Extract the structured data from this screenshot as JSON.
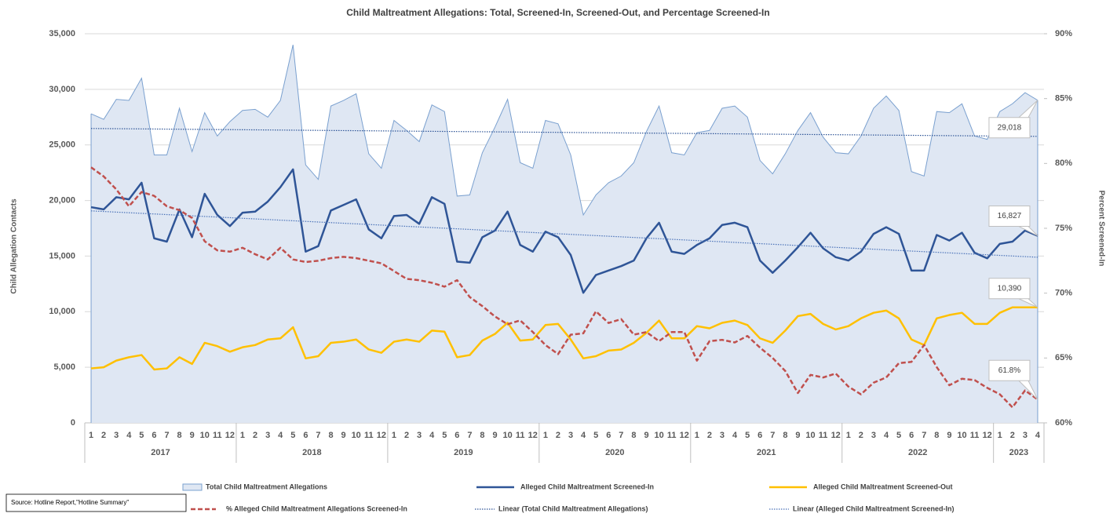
{
  "chart_data": {
    "type": "line",
    "title": "Child Maltreatment Allegations: Total, Screened-In, Screened-Out, and Percentage Screened-In",
    "y_label": "Child Allegation Contacts",
    "y2_label": "Percent Screened-In",
    "source": "Source: Hotline Report,\"Hotline Summary\"",
    "categories": [
      "1",
      "2",
      "3",
      "4",
      "5",
      "6",
      "7",
      "8",
      "9",
      "10",
      "11",
      "12",
      "1",
      "2",
      "3",
      "4",
      "5",
      "6",
      "7",
      "8",
      "9",
      "10",
      "11",
      "12",
      "1",
      "2",
      "3",
      "4",
      "5",
      "6",
      "7",
      "8",
      "9",
      "10",
      "11",
      "12",
      "1",
      "2",
      "3",
      "4",
      "5",
      "6",
      "7",
      "8",
      "9",
      "10",
      "11",
      "12",
      "1",
      "2",
      "3",
      "4",
      "5",
      "6",
      "7",
      "8",
      "9",
      "10",
      "11",
      "12",
      "1",
      "2",
      "3",
      "4",
      "5",
      "6",
      "7",
      "8",
      "9",
      "10",
      "11",
      "12",
      "1",
      "2",
      "3",
      "4"
    ],
    "years": [
      "2017",
      "2018",
      "2019",
      "2020",
      "2021",
      "2022",
      "2023"
    ],
    "ylim": [
      0,
      35000
    ],
    "yticks": [
      0,
      {
        "value": 5000,
        "label": "5,000"
      },
      {
        "value": 10000,
        "label": "10,000"
      },
      {
        "value": 15000,
        "label": "15,000"
      },
      {
        "value": 20000,
        "label": "20,000"
      },
      {
        "value": 25000,
        "label": "25,000"
      },
      {
        "value": 30000,
        "label": "30,000"
      },
      {
        "value": 35000,
        "label": "35,000"
      }
    ],
    "y2lim": [
      60,
      90
    ],
    "y2ticks": [
      {
        "value": 60,
        "label": "60%"
      },
      {
        "value": 65,
        "label": "65%"
      },
      {
        "value": 70,
        "label": "70%"
      },
      {
        "value": 75,
        "label": "75%"
      },
      {
        "value": 80,
        "label": "80%"
      },
      {
        "value": 85,
        "label": "85%"
      },
      {
        "value": 90,
        "label": "90%"
      }
    ],
    "grid": true,
    "series": [
      {
        "name": "Total Child Maltreatment Allegations",
        "type": "area",
        "color": "#7aa0cf",
        "fill": "#dfe7f3",
        "trendline": "Linear (Total Child Maltreatment Allegations)",
        "values": [
          27800,
          27300,
          29100,
          29000,
          31000,
          24100,
          24100,
          28300,
          24400,
          27900,
          25800,
          27100,
          28100,
          28200,
          27500,
          29000,
          34000,
          23200,
          21900,
          28500,
          29000,
          29600,
          24200,
          22900,
          27200,
          26300,
          25300,
          28600,
          28000,
          20400,
          20500,
          24300,
          26600,
          29100,
          23400,
          22900,
          27200,
          26900,
          24100,
          18700,
          20500,
          21600,
          22200,
          23400,
          26200,
          28500,
          24300,
          24100,
          26100,
          26300,
          28300,
          28500,
          27500,
          23600,
          22400,
          24200,
          26300,
          27900,
          25700,
          24300,
          24200,
          25800,
          28300,
          29400,
          28100,
          22600,
          22200,
          28000,
          27900,
          28700,
          25800,
          25500,
          28000,
          28700,
          29700,
          29018
        ],
        "value_labels": [
          null,
          null,
          null,
          null,
          null,
          null,
          null,
          null,
          null,
          null,
          null,
          null,
          null,
          null,
          null,
          null,
          null,
          null,
          null,
          null,
          null,
          null,
          null,
          null,
          null,
          null,
          null,
          null,
          null,
          null,
          null,
          null,
          null,
          null,
          null,
          null,
          null,
          null,
          null,
          null,
          null,
          null,
          null,
          null,
          null,
          null,
          null,
          null,
          null,
          null,
          null,
          null,
          null,
          null,
          null,
          null,
          null,
          null,
          null,
          null,
          null,
          null,
          null,
          null,
          null,
          null,
          null,
          null,
          null,
          null,
          null,
          null,
          null,
          null,
          null,
          "29,018"
        ]
      },
      {
        "name": "Alleged Child Maltreatment Screened-In",
        "type": "line",
        "color": "#2f5597",
        "trendline": "Linear (Alleged Child Maltreatment Screened-In)",
        "values": [
          19400,
          19200,
          20300,
          20100,
          21600,
          16600,
          16300,
          19200,
          16700,
          20600,
          18700,
          17700,
          18900,
          19000,
          19900,
          21200,
          22800,
          15400,
          15900,
          19100,
          19600,
          20100,
          17400,
          16600,
          18600,
          18700,
          17900,
          20300,
          19700,
          14500,
          14400,
          16700,
          17300,
          19000,
          16000,
          15400,
          17200,
          16700,
          15100,
          11700,
          13300,
          13700,
          14100,
          14600,
          16600,
          18000,
          15400,
          15200,
          16000,
          16600,
          17800,
          18000,
          17600,
          14600,
          13500,
          14600,
          15800,
          17100,
          15700,
          14900,
          14600,
          15400,
          17000,
          17600,
          17000,
          13700,
          13700,
          16900,
          16400,
          17100,
          15300,
          14800,
          16100,
          16300,
          17300,
          16827
        ],
        "value_labels": [
          null,
          null,
          null,
          null,
          null,
          null,
          null,
          null,
          null,
          null,
          null,
          null,
          null,
          null,
          null,
          null,
          null,
          null,
          null,
          null,
          null,
          null,
          null,
          null,
          null,
          null,
          null,
          null,
          null,
          null,
          null,
          null,
          null,
          null,
          null,
          null,
          null,
          null,
          null,
          null,
          null,
          null,
          null,
          null,
          null,
          null,
          null,
          null,
          null,
          null,
          null,
          null,
          null,
          null,
          null,
          null,
          null,
          null,
          null,
          null,
          null,
          null,
          null,
          null,
          null,
          null,
          null,
          null,
          null,
          null,
          null,
          null,
          null,
          null,
          null,
          "16,827"
        ]
      },
      {
        "name": "Alleged Child Maltreatment Screened-Out",
        "type": "line",
        "color": "#ffc000",
        "values": [
          4900,
          5000,
          5600,
          5900,
          6100,
          4800,
          4900,
          5900,
          5300,
          7200,
          6900,
          6400,
          6800,
          7000,
          7500,
          7600,
          8600,
          5800,
          6000,
          7200,
          7300,
          7500,
          6600,
          6300,
          7300,
          7500,
          7300,
          8300,
          8200,
          5900,
          6100,
          7400,
          8000,
          9000,
          7400,
          7500,
          8800,
          8900,
          7500,
          5800,
          6000,
          6500,
          6600,
          7200,
          8100,
          9200,
          7600,
          7600,
          8700,
          8500,
          9000,
          9200,
          8800,
          7600,
          7200,
          8300,
          9600,
          9800,
          8900,
          8400,
          8700,
          9400,
          9900,
          10100,
          9400,
          7500,
          7000,
          9400,
          9700,
          9900,
          8900,
          8900,
          9900,
          10390,
          10390,
          10390
        ],
        "value_labels": [
          null,
          null,
          null,
          null,
          null,
          null,
          null,
          null,
          null,
          null,
          null,
          null,
          null,
          null,
          null,
          null,
          null,
          null,
          null,
          null,
          null,
          null,
          null,
          null,
          null,
          null,
          null,
          null,
          null,
          null,
          null,
          null,
          null,
          null,
          null,
          null,
          null,
          null,
          null,
          null,
          null,
          null,
          null,
          null,
          null,
          null,
          null,
          null,
          null,
          null,
          null,
          null,
          null,
          null,
          null,
          null,
          null,
          null,
          null,
          null,
          null,
          null,
          null,
          null,
          null,
          null,
          null,
          null,
          null,
          null,
          null,
          null,
          null,
          null,
          null,
          "10,390"
        ]
      },
      {
        "name": "% Alleged Child Maltreatment Allegations Screened-In",
        "type": "line",
        "color": "#c0504d",
        "dashed": true,
        "axis": "y2",
        "values": [
          79.7,
          79.0,
          78.0,
          76.7,
          77.8,
          77.5,
          76.7,
          76.4,
          75.8,
          74.0,
          73.3,
          73.2,
          73.5,
          73.0,
          72.6,
          73.5,
          72.6,
          72.4,
          72.5,
          72.7,
          72.8,
          72.7,
          72.5,
          72.3,
          71.7,
          71.1,
          71.0,
          70.8,
          70.5,
          71.0,
          69.7,
          69.0,
          68.2,
          67.6,
          67.9,
          67.0,
          66.0,
          65.3,
          66.8,
          66.9,
          68.6,
          67.7,
          68.0,
          66.8,
          67.0,
          66.3,
          67.0,
          67.0,
          64.8,
          66.3,
          66.4,
          66.2,
          66.7,
          65.8,
          65.0,
          64.0,
          62.3,
          63.7,
          63.5,
          63.8,
          62.8,
          62.2,
          63.1,
          63.5,
          64.6,
          64.7,
          66.0,
          64.3,
          62.9,
          63.4,
          63.3,
          62.7,
          62.2,
          61.2,
          62.5,
          61.8
        ],
        "value_labels": [
          null,
          null,
          null,
          null,
          null,
          null,
          null,
          null,
          null,
          null,
          null,
          null,
          null,
          null,
          null,
          null,
          null,
          null,
          null,
          null,
          null,
          null,
          null,
          null,
          null,
          null,
          null,
          null,
          null,
          null,
          null,
          null,
          null,
          null,
          null,
          null,
          null,
          null,
          null,
          null,
          null,
          null,
          null,
          null,
          null,
          null,
          null,
          null,
          null,
          null,
          null,
          null,
          null,
          null,
          null,
          null,
          null,
          null,
          null,
          null,
          null,
          null,
          null,
          null,
          null,
          null,
          null,
          null,
          null,
          null,
          null,
          null,
          null,
          null,
          null,
          "61.8%"
        ]
      }
    ]
  }
}
